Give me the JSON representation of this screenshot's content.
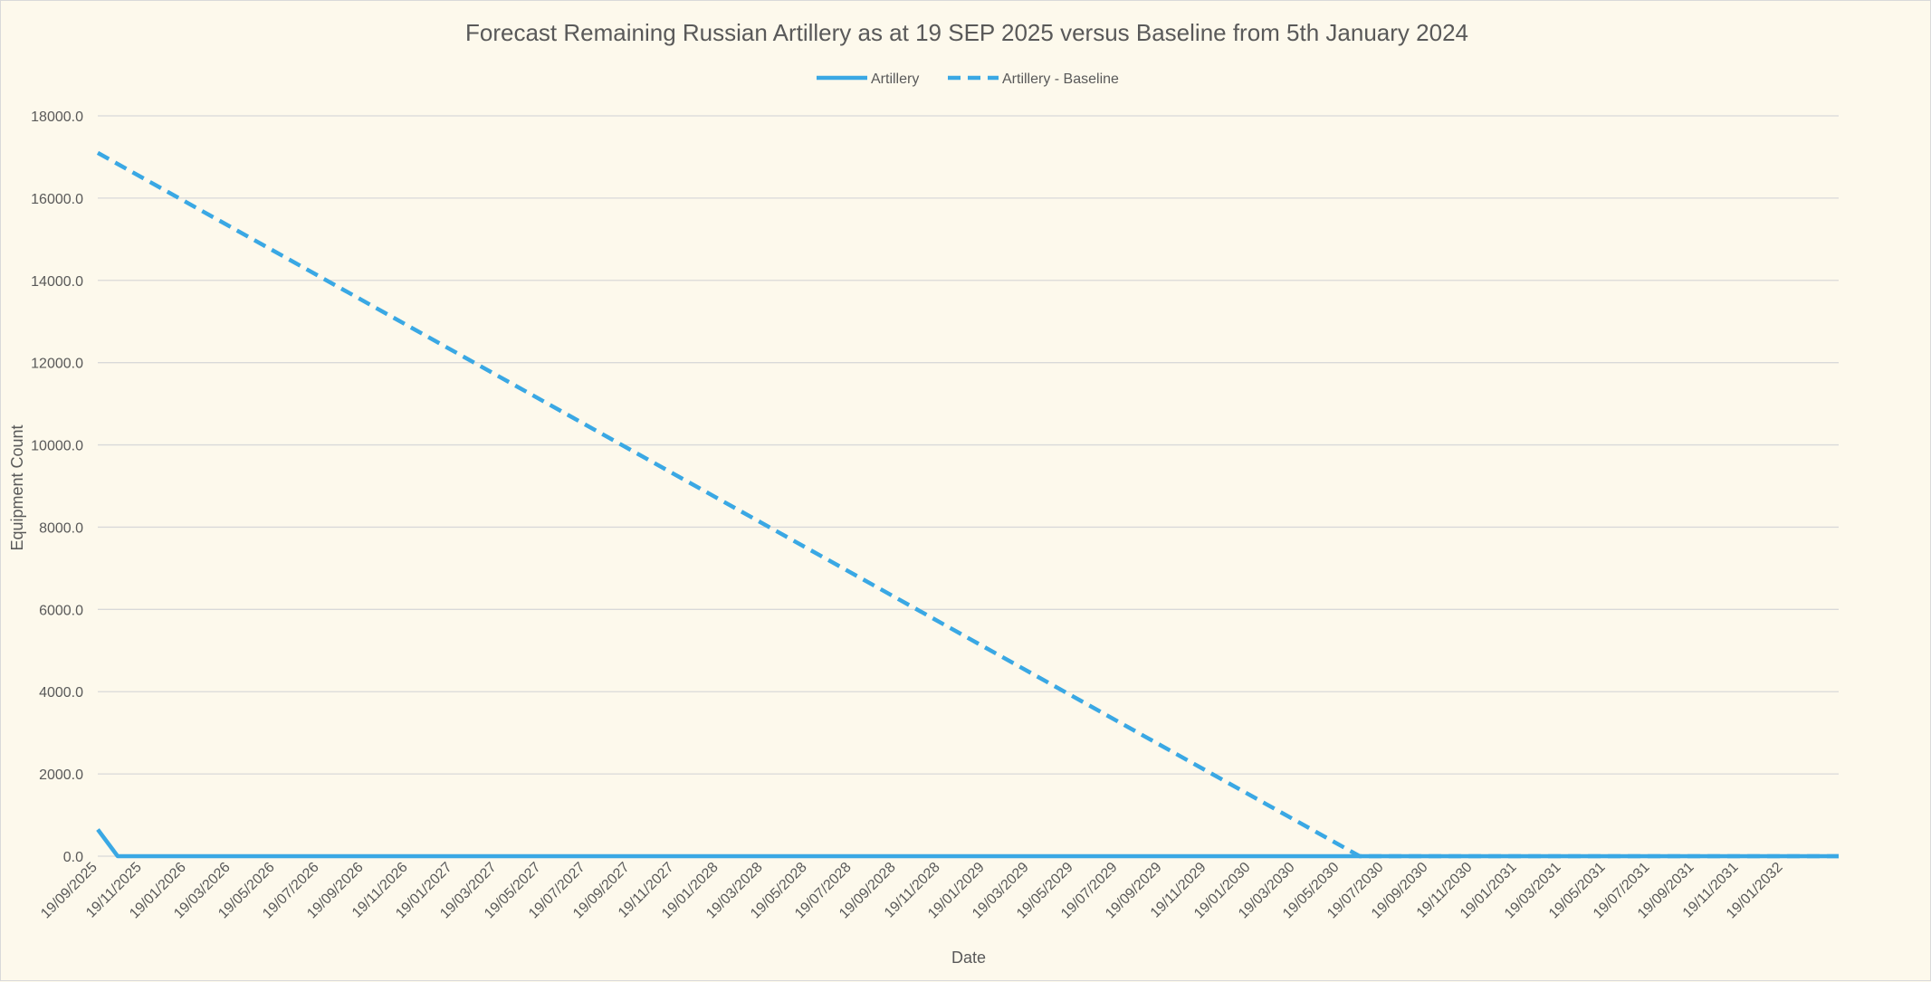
{
  "chart_data": {
    "type": "line",
    "title": "Forecast Remaining Russian Artillery as at 19 SEP 2025 versus Baseline from 5th January 2024",
    "xlabel": "Date",
    "ylabel": "Equipment Count",
    "ylim": [
      0,
      18000
    ],
    "yticks": [
      "0.0",
      "2000.0",
      "4000.0",
      "6000.0",
      "8000.0",
      "10000.0",
      "12000.0",
      "14000.0",
      "16000.0",
      "18000.0"
    ],
    "grid": true,
    "legend": "top-center",
    "x_tick_labels": [
      "19/09/2025",
      "19/11/2025",
      "19/01/2026",
      "19/03/2026",
      "19/05/2026",
      "19/07/2026",
      "19/09/2026",
      "19/11/2026",
      "19/01/2027",
      "19/03/2027",
      "19/05/2027",
      "19/07/2027",
      "19/09/2027",
      "19/11/2027",
      "19/01/2028",
      "19/03/2028",
      "19/05/2028",
      "19/07/2028",
      "19/09/2028",
      "19/11/2028",
      "19/01/2029",
      "19/03/2029",
      "19/05/2029",
      "19/07/2029",
      "19/09/2029",
      "19/11/2029",
      "19/01/2030",
      "19/03/2030",
      "19/05/2030",
      "19/07/2030",
      "19/09/2030",
      "19/11/2030",
      "19/01/2031",
      "19/03/2031",
      "19/05/2031",
      "19/07/2031",
      "19/09/2031",
      "19/11/2031",
      "19/01/2032"
    ],
    "x_range_months": [
      0,
      78.5
    ],
    "series": [
      {
        "name": "Artillery",
        "style": "solid",
        "color": "#3aa8e4",
        "points": [
          [
            0,
            650
          ],
          [
            0.9,
            0
          ],
          [
            78.5,
            0
          ]
        ]
      },
      {
        "name": "Artillery - Baseline",
        "style": "dashed",
        "color": "#3aa8e4",
        "points": [
          [
            0,
            17100
          ],
          [
            56.9,
            0
          ],
          [
            78.5,
            0
          ]
        ]
      }
    ]
  }
}
